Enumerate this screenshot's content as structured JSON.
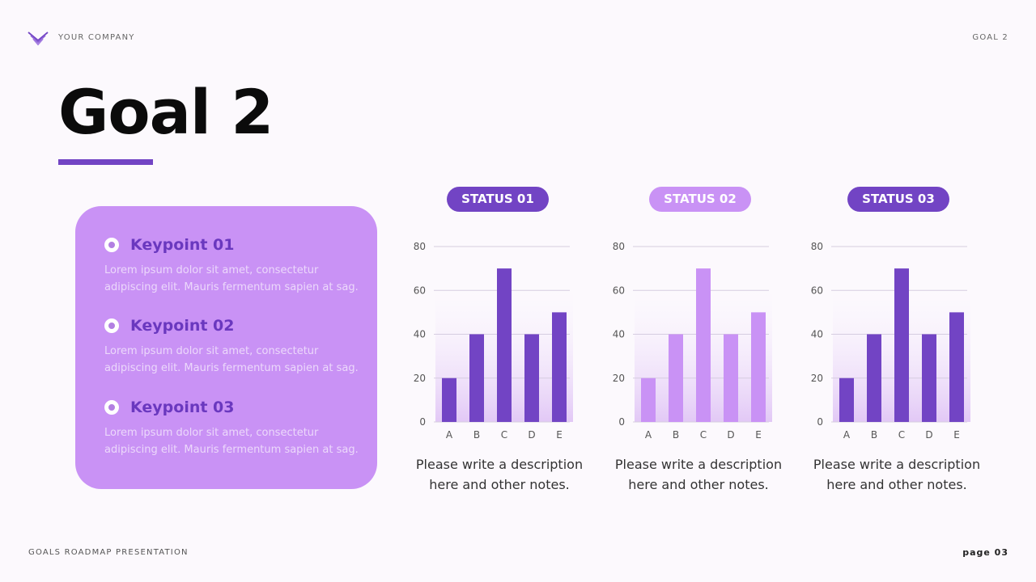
{
  "header": {
    "company": "YOUR COMPANY",
    "section": "GOAL 2",
    "logo_icon": "chevron-stack-icon"
  },
  "title": "Goal 2",
  "colors": {
    "accent": "#7244c4",
    "accent_light": "#c992f5",
    "card_bg": "#c992f5",
    "keypoint_title": "#6a38bf",
    "page_bg": "#fcf9fd"
  },
  "keypoints": [
    {
      "title": "Keypoint 01",
      "text": "Lorem ipsum dolor sit amet, consectetur adipiscing elit. Mauris fermentum sapien at sag."
    },
    {
      "title": "Keypoint 02",
      "text": "Lorem ipsum dolor sit amet, consectetur adipiscing elit. Mauris fermentum sapien at sag."
    },
    {
      "title": "Keypoint 03",
      "text": "Lorem ipsum dolor sit amet, consectetur adipiscing elit. Mauris fermentum sapien at sag."
    }
  ],
  "statuses": [
    {
      "label": "STATUS 01",
      "color": "#7244c4",
      "description_line1": "Please write a description",
      "description_line2": "here and other notes."
    },
    {
      "label": "STATUS 02",
      "color": "#c992f5",
      "description_line1": "Please write a description",
      "description_line2": "here and other notes."
    },
    {
      "label": "STATUS 03",
      "color": "#7244c4",
      "description_line1": "Please write a description",
      "description_line2": "here and other notes."
    }
  ],
  "chart_data": [
    {
      "type": "bar",
      "title": "STATUS 01",
      "categories": [
        "A",
        "B",
        "C",
        "D",
        "E"
      ],
      "values": [
        20,
        40,
        70,
        40,
        50
      ],
      "yticks": [
        0,
        20,
        40,
        60,
        80
      ],
      "ylim": [
        0,
        80
      ],
      "xlabel": "",
      "ylabel": "",
      "grid": true,
      "bar_color": "#7244c4"
    },
    {
      "type": "bar",
      "title": "STATUS 02",
      "categories": [
        "A",
        "B",
        "C",
        "D",
        "E"
      ],
      "values": [
        20,
        40,
        70,
        40,
        50
      ],
      "yticks": [
        0,
        20,
        40,
        60,
        80
      ],
      "ylim": [
        0,
        80
      ],
      "xlabel": "",
      "ylabel": "",
      "grid": true,
      "bar_color": "#c992f5"
    },
    {
      "type": "bar",
      "title": "STATUS 03",
      "categories": [
        "A",
        "B",
        "C",
        "D",
        "E"
      ],
      "values": [
        20,
        40,
        70,
        40,
        50
      ],
      "yticks": [
        0,
        20,
        40,
        60,
        80
      ],
      "ylim": [
        0,
        80
      ],
      "xlabel": "",
      "ylabel": "",
      "grid": true,
      "bar_color": "#7244c4"
    }
  ],
  "footer": {
    "presentation": "GOALS ROADMAP PRESENTATION",
    "page": "page 03"
  }
}
